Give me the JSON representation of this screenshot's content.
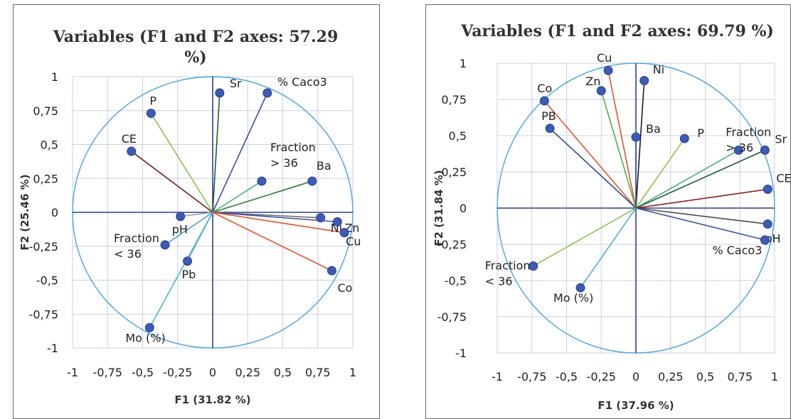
{
  "chart_data": [
    {
      "type": "scatter",
      "title": "Variables (F1 and F2 axes: 57.29 %)",
      "xlabel": "F1 (31.82 %)",
      "ylabel": "F2 (25.46 %)",
      "xlim": [
        -1,
        1
      ],
      "ylim": [
        -1,
        1
      ],
      "xticks": [
        "-1",
        "-0,75",
        "-0,5",
        "-0,25",
        "0",
        "0,25",
        "0,5",
        "0,75",
        "1"
      ],
      "yticks": [
        "1",
        "0,75",
        "0,5",
        "0,25",
        "0",
        "-0,25",
        "-0,5",
        "-0,75",
        "-1"
      ],
      "grid": true,
      "unit_circle": true,
      "series": [
        {
          "name": "Sr",
          "x": 0.05,
          "y": 0.88,
          "color": "#1e5a3a"
        },
        {
          "name": "% Caco3",
          "x": 0.39,
          "y": 0.88,
          "color": "#3b4e9e"
        },
        {
          "name": "P",
          "x": -0.44,
          "y": 0.73,
          "color": "#8bc34a"
        },
        {
          "name": "CE",
          "x": -0.58,
          "y": 0.45,
          "color": "#6b1f1f"
        },
        {
          "name": "Fraction > 36",
          "x": 0.35,
          "y": 0.23,
          "color": "#4caf7a"
        },
        {
          "name": "Ba",
          "x": 0.71,
          "y": 0.23,
          "color": "#2e7d32"
        },
        {
          "name": "pH",
          "x": -0.23,
          "y": -0.03,
          "color": "#a0a0a0"
        },
        {
          "name": "Ni",
          "x": 0.77,
          "y": -0.04,
          "color": "#6e6e6e"
        },
        {
          "name": "Zn",
          "x": 0.89,
          "y": -0.07,
          "color": "#3b4e9e"
        },
        {
          "name": "Cu",
          "x": 0.94,
          "y": -0.15,
          "color": "#e4532b"
        },
        {
          "name": "Fraction < 36",
          "x": -0.34,
          "y": -0.24,
          "color": "#4a9fd4"
        },
        {
          "name": "Pb",
          "x": -0.18,
          "y": -0.36,
          "color": "#8ab0d8"
        },
        {
          "name": "Co",
          "x": 0.85,
          "y": -0.43,
          "color": "#e4532b"
        },
        {
          "name": "Mo (%)",
          "x": -0.45,
          "y": -0.85,
          "color": "#4ab3c8"
        }
      ]
    },
    {
      "type": "scatter",
      "title": "Variables (F1 and F2 axes: 69.79 %)",
      "xlabel": "F1 (37.96 %)",
      "ylabel": "F2 (31.84 %)",
      "xlim": [
        -1,
        1
      ],
      "ylim": [
        -1,
        1
      ],
      "xticks": [
        "-1",
        "-0,75",
        "-0,5",
        "-0,25",
        "0",
        "0,25",
        "0,5",
        "0,75",
        "1"
      ],
      "yticks": [
        "1",
        "0,75",
        "0,5",
        "0,25",
        "0",
        "-0,25",
        "-0,5",
        "-0,75",
        "-1"
      ],
      "grid": true,
      "unit_circle": true,
      "series": [
        {
          "name": "Cu",
          "x": -0.2,
          "y": 0.95,
          "color": "#e4532b"
        },
        {
          "name": "Ni",
          "x": 0.06,
          "y": 0.88,
          "color": "#1a1a3a"
        },
        {
          "name": "Zn",
          "x": -0.25,
          "y": 0.81,
          "color": "#4caf50"
        },
        {
          "name": "Co",
          "x": -0.66,
          "y": 0.74,
          "color": "#e4532b"
        },
        {
          "name": "PB",
          "x": -0.62,
          "y": 0.55,
          "color": "#2f4a8a"
        },
        {
          "name": "Ba",
          "x": 0.0,
          "y": 0.49,
          "color": "#3b4e9e"
        },
        {
          "name": "P",
          "x": 0.35,
          "y": 0.48,
          "color": "#8bc34a"
        },
        {
          "name": "Fraction > 36",
          "x": 0.74,
          "y": 0.4,
          "color": "#4caf7a"
        },
        {
          "name": "Sr",
          "x": 0.93,
          "y": 0.4,
          "color": "#1e5a3a"
        },
        {
          "name": "CE",
          "x": 0.95,
          "y": 0.13,
          "color": "#8b1a1a"
        },
        {
          "name": "pH",
          "x": 0.95,
          "y": -0.11,
          "color": "#4a4a4a"
        },
        {
          "name": "% Caco3",
          "x": 0.93,
          "y": -0.22,
          "color": "#3b4e9e"
        },
        {
          "name": "Fraction < 36",
          "x": -0.74,
          "y": -0.4,
          "color": "#8bc34a"
        },
        {
          "name": "Mo (%)",
          "x": -0.4,
          "y": -0.55,
          "color": "#4ab3c8"
        }
      ]
    }
  ]
}
